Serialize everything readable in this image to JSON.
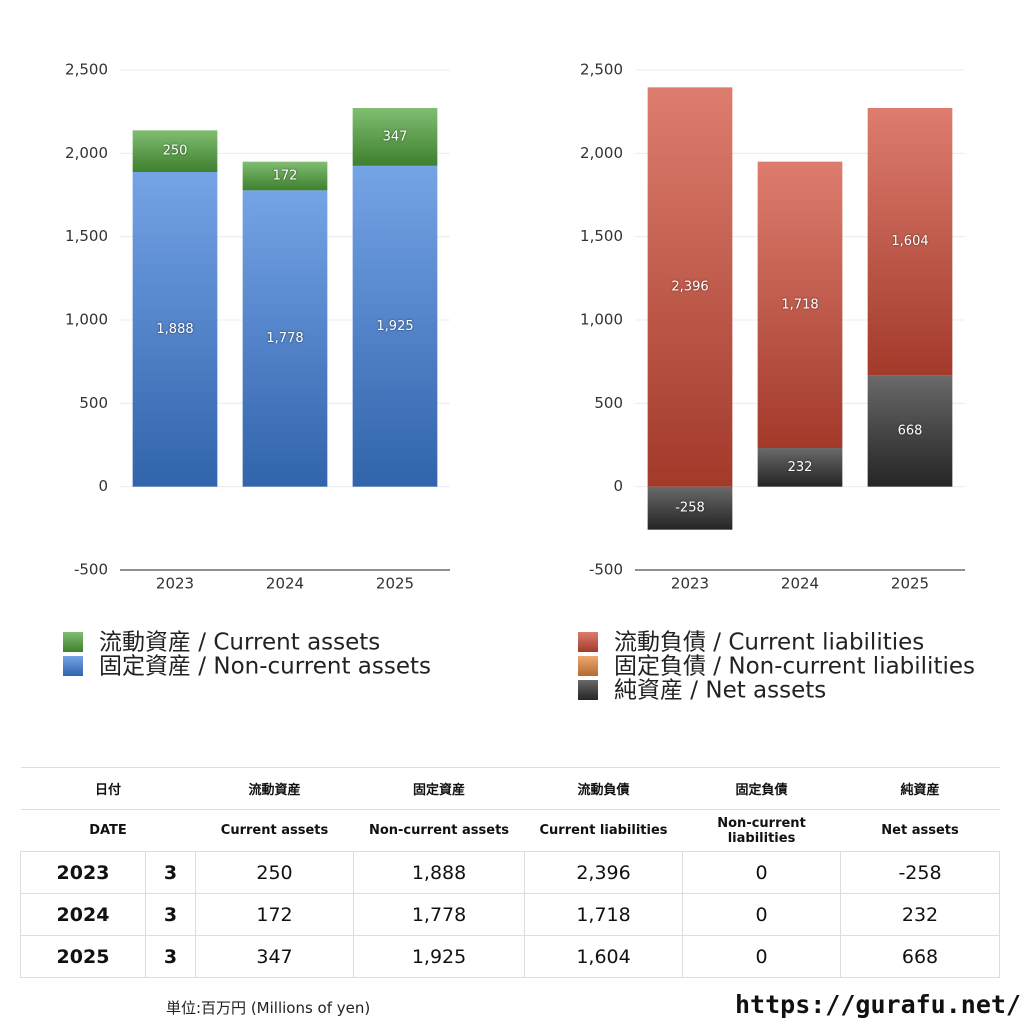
{
  "chart_data": [
    {
      "type": "stacked-bar",
      "categories": [
        "2023",
        "2024",
        "2025"
      ],
      "ylim": [
        -500,
        2500
      ],
      "yticks": [
        -500,
        0,
        500,
        {
          "value": 1000,
          "label": "1,000"
        },
        {
          "value": 1500,
          "label": "1,500"
        },
        {
          "value": 2000,
          "label": "2,000"
        },
        {
          "value": 2500,
          "label": "2,500"
        }
      ],
      "grid": true,
      "series": [
        {
          "name": "流動資産 / Current assets",
          "color": "#4fa43a",
          "values": [
            250,
            172,
            347
          ]
        },
        {
          "name": "固定資産 / Non-current assets",
          "color": "#3f80dc",
          "values": [
            1888,
            1778,
            1925
          ],
          "value_labels": [
            "1,888",
            "1,778",
            "1,925"
          ]
        }
      ]
    },
    {
      "type": "stacked-bar",
      "categories": [
        "2023",
        "2024",
        "2025"
      ],
      "ylim": [
        -500,
        2500
      ],
      "yticks": [
        -500,
        0,
        500,
        {
          "value": 1000,
          "label": "1,000"
        },
        {
          "value": 1500,
          "label": "1,500"
        },
        {
          "value": 2000,
          "label": "2,000"
        },
        {
          "value": 2500,
          "label": "2,500"
        }
      ],
      "grid": true,
      "series": [
        {
          "name": "流動負債 / Current liabilities",
          "color": "#d04a36",
          "values": [
            2396,
            1718,
            1604
          ],
          "value_labels": [
            "2,396",
            "1,718",
            "1,604"
          ]
        },
        {
          "name": "固定負債 / Non-current liabilities",
          "color": "#e8873a",
          "values": [
            0,
            0,
            0
          ]
        },
        {
          "name": "純資産 / Net assets",
          "color": "#303030",
          "values": [
            -258,
            232,
            668
          ]
        }
      ]
    }
  ],
  "table": {
    "header": [
      [
        "日付",
        "流動資産",
        "固定資産",
        "流動負債",
        "固定負債",
        "純資産"
      ],
      [
        "DATE",
        "Current assets",
        "Non-current assets",
        "Current liabilities",
        "Non-current liabilities",
        "Net assets"
      ]
    ],
    "rows": [
      [
        "2023",
        "3",
        "250",
        "1,888",
        "2,396",
        "0",
        "-258"
      ],
      [
        "2024",
        "3",
        "172",
        "1,778",
        "1,718",
        "0",
        "232"
      ],
      [
        "2025",
        "3",
        "347",
        "1,925",
        "1,604",
        "0",
        "668"
      ]
    ]
  },
  "footer": {
    "unit": "単位:百万円 (Millions of yen)",
    "url": "https://gurafu.net/"
  }
}
